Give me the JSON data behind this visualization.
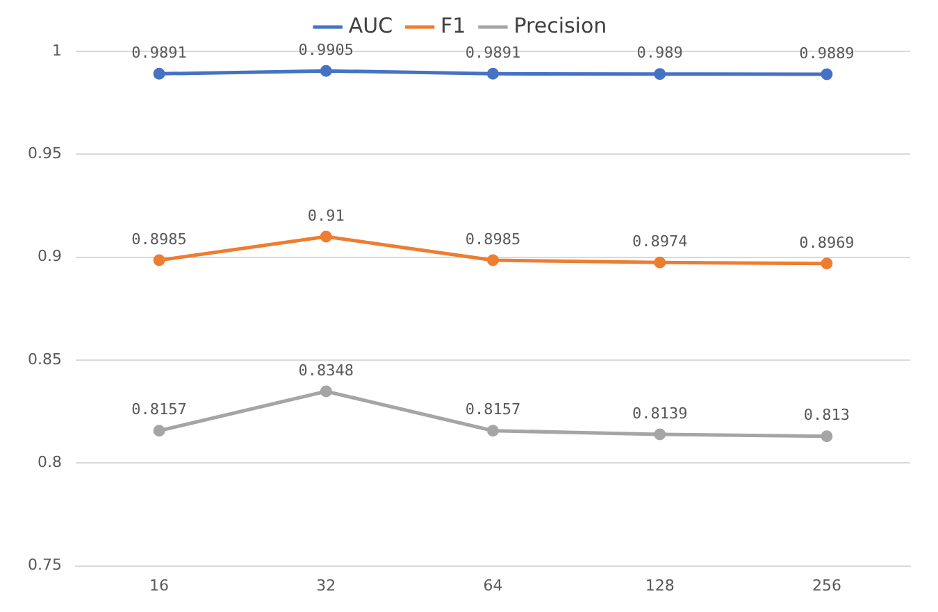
{
  "chart_data": {
    "type": "line",
    "categories": [
      "16",
      "32",
      "64",
      "128",
      "256"
    ],
    "series": [
      {
        "name": "AUC",
        "color": "#4472c4",
        "values": [
          0.9891,
          0.9905,
          0.9891,
          0.989,
          0.9889
        ]
      },
      {
        "name": "F1",
        "color": "#ed7d31",
        "values": [
          0.8985,
          0.91,
          0.8985,
          0.8974,
          0.8969
        ]
      },
      {
        "name": "Precision",
        "color": "#a5a5a5",
        "values": [
          0.8157,
          0.8348,
          0.8157,
          0.8139,
          0.813
        ]
      }
    ],
    "ylim": [
      0.75,
      1
    ],
    "yticks": [
      0.75,
      0.8,
      0.85,
      0.9,
      0.95,
      1
    ],
    "grid": "y",
    "legend": "top",
    "marker": "circle",
    "line_style": "solid",
    "data_labels": true
  }
}
